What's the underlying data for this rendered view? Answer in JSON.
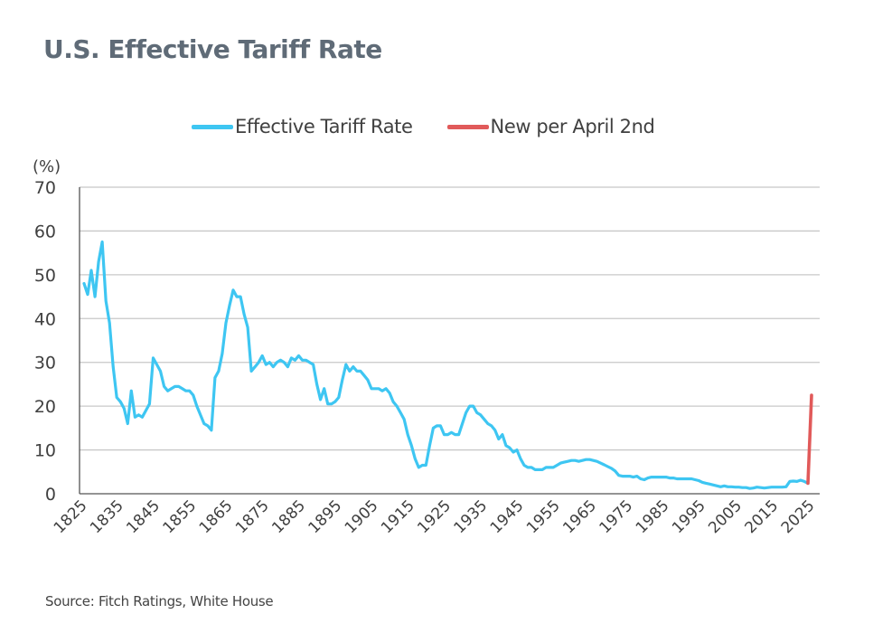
{
  "chart_data": {
    "type": "line",
    "title": "U.S. Effective Tariff Rate",
    "ylabel": "(%)",
    "xlabel": "",
    "ylim": [
      0,
      70
    ],
    "yticks": [
      0,
      10,
      20,
      30,
      40,
      50,
      60,
      70
    ],
    "xlim": [
      1825,
      2025
    ],
    "xticks": [
      1825,
      1835,
      1845,
      1855,
      1865,
      1875,
      1885,
      1895,
      1905,
      1915,
      1925,
      1935,
      1945,
      1955,
      1965,
      1975,
      1985,
      1995,
      2005,
      2015,
      2025
    ],
    "grid": "horizontal",
    "legend_position": "top",
    "series": [
      {
        "name": "Effective Tariff Rate",
        "color": "#3ec6f2",
        "x_start": 1825,
        "values": [
          48,
          45.5,
          51,
          45,
          53,
          57.5,
          44,
          39,
          29,
          22,
          21,
          19.5,
          16,
          23.5,
          17.5,
          18,
          17.5,
          19,
          20.5,
          31,
          29.5,
          28,
          24.5,
          23.5,
          24,
          24.5,
          24.5,
          24,
          23.5,
          23.5,
          22.5,
          20,
          18,
          16,
          15.5,
          14.5,
          26.5,
          28,
          32,
          39,
          43,
          46.5,
          45,
          45,
          41,
          38,
          28,
          29,
          30,
          31.5,
          29.5,
          30,
          29,
          30,
          30.5,
          30,
          29,
          31,
          30.5,
          31.5,
          30.5,
          30.5,
          30,
          29.5,
          25,
          21.5,
          24,
          20.5,
          20.5,
          21,
          22,
          26,
          29.5,
          28,
          29,
          28,
          28,
          27,
          26,
          24,
          24,
          24,
          23.5,
          24,
          23,
          21,
          20,
          18.5,
          17,
          13.5,
          11,
          8,
          6,
          6.5,
          6.5,
          11,
          15,
          15.5,
          15.5,
          13.5,
          13.5,
          14,
          13.5,
          13.5,
          16,
          18.5,
          20,
          20,
          18.5,
          18,
          17,
          16,
          15.5,
          14.5,
          12.5,
          13.5,
          11,
          10.5,
          9.5,
          10,
          8,
          6.5,
          6,
          6,
          5.5,
          5.5,
          5.5,
          6,
          6,
          6,
          6.5,
          7,
          7.2,
          7.4,
          7.6,
          7.6,
          7.4,
          7.6,
          7.8,
          7.8,
          7.6,
          7.4,
          7,
          6.6,
          6.2,
          5.8,
          5.2,
          4.2,
          4,
          4,
          4,
          3.8,
          4,
          3.4,
          3.2,
          3.6,
          3.8,
          3.8,
          3.8,
          3.8,
          3.8,
          3.6,
          3.6,
          3.4,
          3.4,
          3.4,
          3.4,
          3.4,
          3.2,
          3,
          2.6,
          2.4,
          2.2,
          2,
          1.8,
          1.6,
          1.8,
          1.6,
          1.6,
          1.5,
          1.5,
          1.4,
          1.4,
          1.2,
          1.3,
          1.5,
          1.4,
          1.3,
          1.4,
          1.5,
          1.5,
          1.5,
          1.5,
          1.6,
          2.8,
          2.9,
          2.8,
          3.1,
          2.8,
          2.4
        ]
      },
      {
        "name": "New per April 2nd",
        "color": "#e15a5a",
        "x": [
          2024,
          2025
        ],
        "values": [
          2.4,
          22.5
        ]
      }
    ]
  },
  "header": {
    "title": "U.S. Effective Tariff Rate"
  },
  "footer": {
    "source": "Source: Fitch Ratings, White House"
  }
}
